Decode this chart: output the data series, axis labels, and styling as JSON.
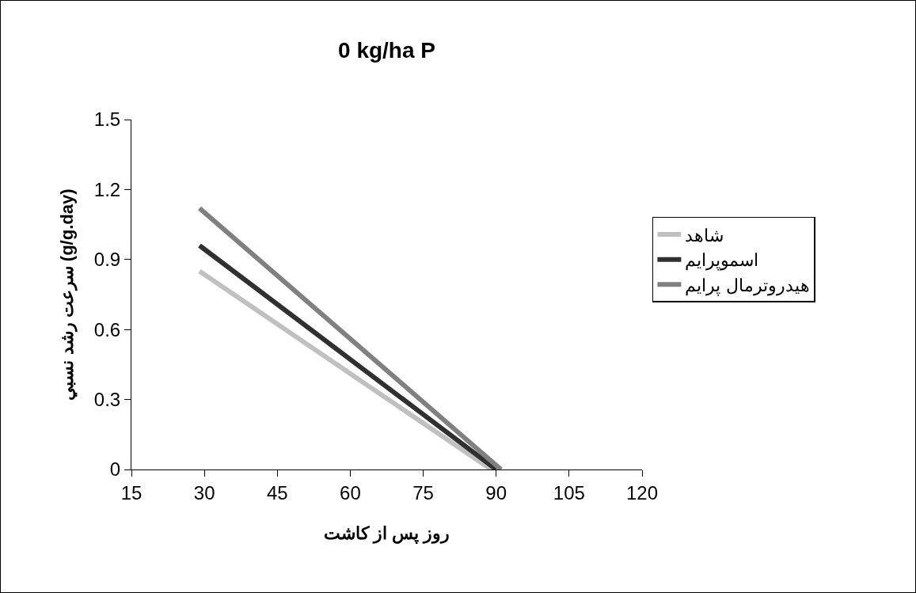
{
  "chart_data": {
    "type": "line",
    "title": "0 kg/ha P",
    "xlabel": "روز پس از کاشت",
    "ylabel": "سرعت رشد نسبي (g/g.day)",
    "series": [
      {
        "name": "شاهد",
        "color": "#c0c0c0",
        "x": [
          29,
          89
        ],
        "values": [
          0.85,
          0
        ]
      },
      {
        "name": "اسموپرايم",
        "color": "#303030",
        "x": [
          29,
          90
        ],
        "values": [
          0.96,
          0
        ]
      },
      {
        "name": "هيدروترمال پرايم",
        "color": "#808080",
        "x": [
          29,
          91
        ],
        "values": [
          1.12,
          0
        ]
      }
    ],
    "xlim": [
      15,
      120
    ],
    "xticks": [
      15,
      30,
      45,
      60,
      75,
      90,
      105,
      120
    ],
    "ylim": [
      0,
      1.5
    ],
    "yticks": [
      0,
      0.3,
      0.6,
      0.9,
      1.2,
      1.5
    ],
    "grid": false,
    "legend": "right",
    "marker": "none",
    "line_style": "solid"
  }
}
